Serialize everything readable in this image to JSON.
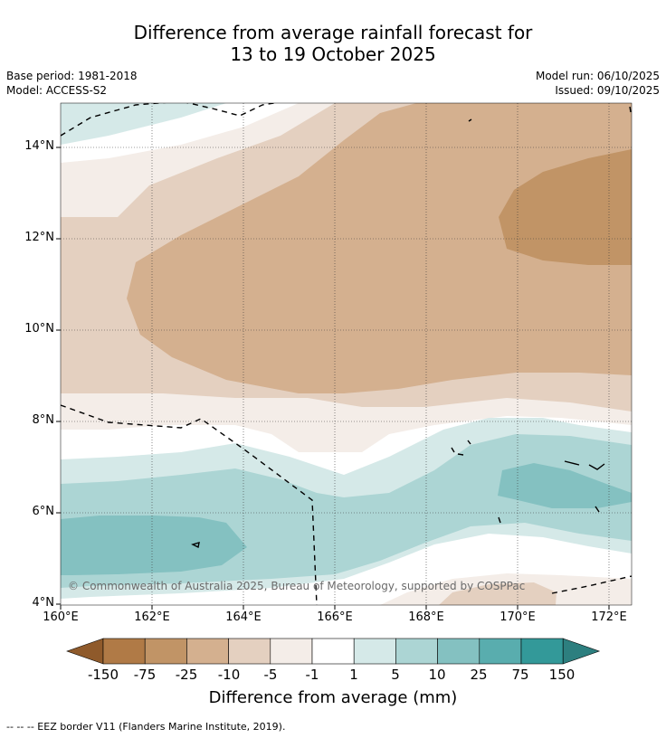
{
  "title": {
    "line1": "Difference from average rainfall forecast for",
    "line2": "13 to 19 October 2025"
  },
  "meta": {
    "base_period": "Base period: 1981-2018",
    "model": "Model: ACCESS-S2",
    "model_run": "Model run: 06/10/2025",
    "issued": "Issued: 09/10/2025"
  },
  "map": {
    "lat_labels": [
      "14°N",
      "12°N",
      "10°N",
      "8°N",
      "6°N",
      "4°N"
    ],
    "lon_labels": [
      "160°E",
      "162°E",
      "164°E",
      "166°E",
      "168°E",
      "170°E",
      "172°E"
    ],
    "copyright": "© Commonwealth of Australia 2025, Bureau of Meteorology, supported by COSPPac"
  },
  "colorbar": {
    "title": "Difference from average (mm)",
    "ticks": [
      "-150",
      "-75",
      "-25",
      "-10",
      "-5",
      "-1",
      "1",
      "5",
      "10",
      "25",
      "75",
      "150"
    ],
    "colors": {
      "below_-150": "#8f5a2b",
      "-150_-75": "#b07a46",
      "-75_-25": "#c19466",
      "-25_-10": "#d4b08f",
      "-10_-5": "#e4d0c0",
      "-5_-1": "#f4ede8",
      "-1_1": "#ffffff",
      "1_5": "#d5e9e8",
      "5_10": "#acd5d4",
      "10_25": "#84c1c1",
      "25_75": "#59adae",
      "75_150": "#339999",
      "above_150": "#2d7f7f"
    }
  },
  "footer": {
    "legend": "--  --  -- EEZ border V11 (Flanders Marine Institute, 2019)."
  }
}
